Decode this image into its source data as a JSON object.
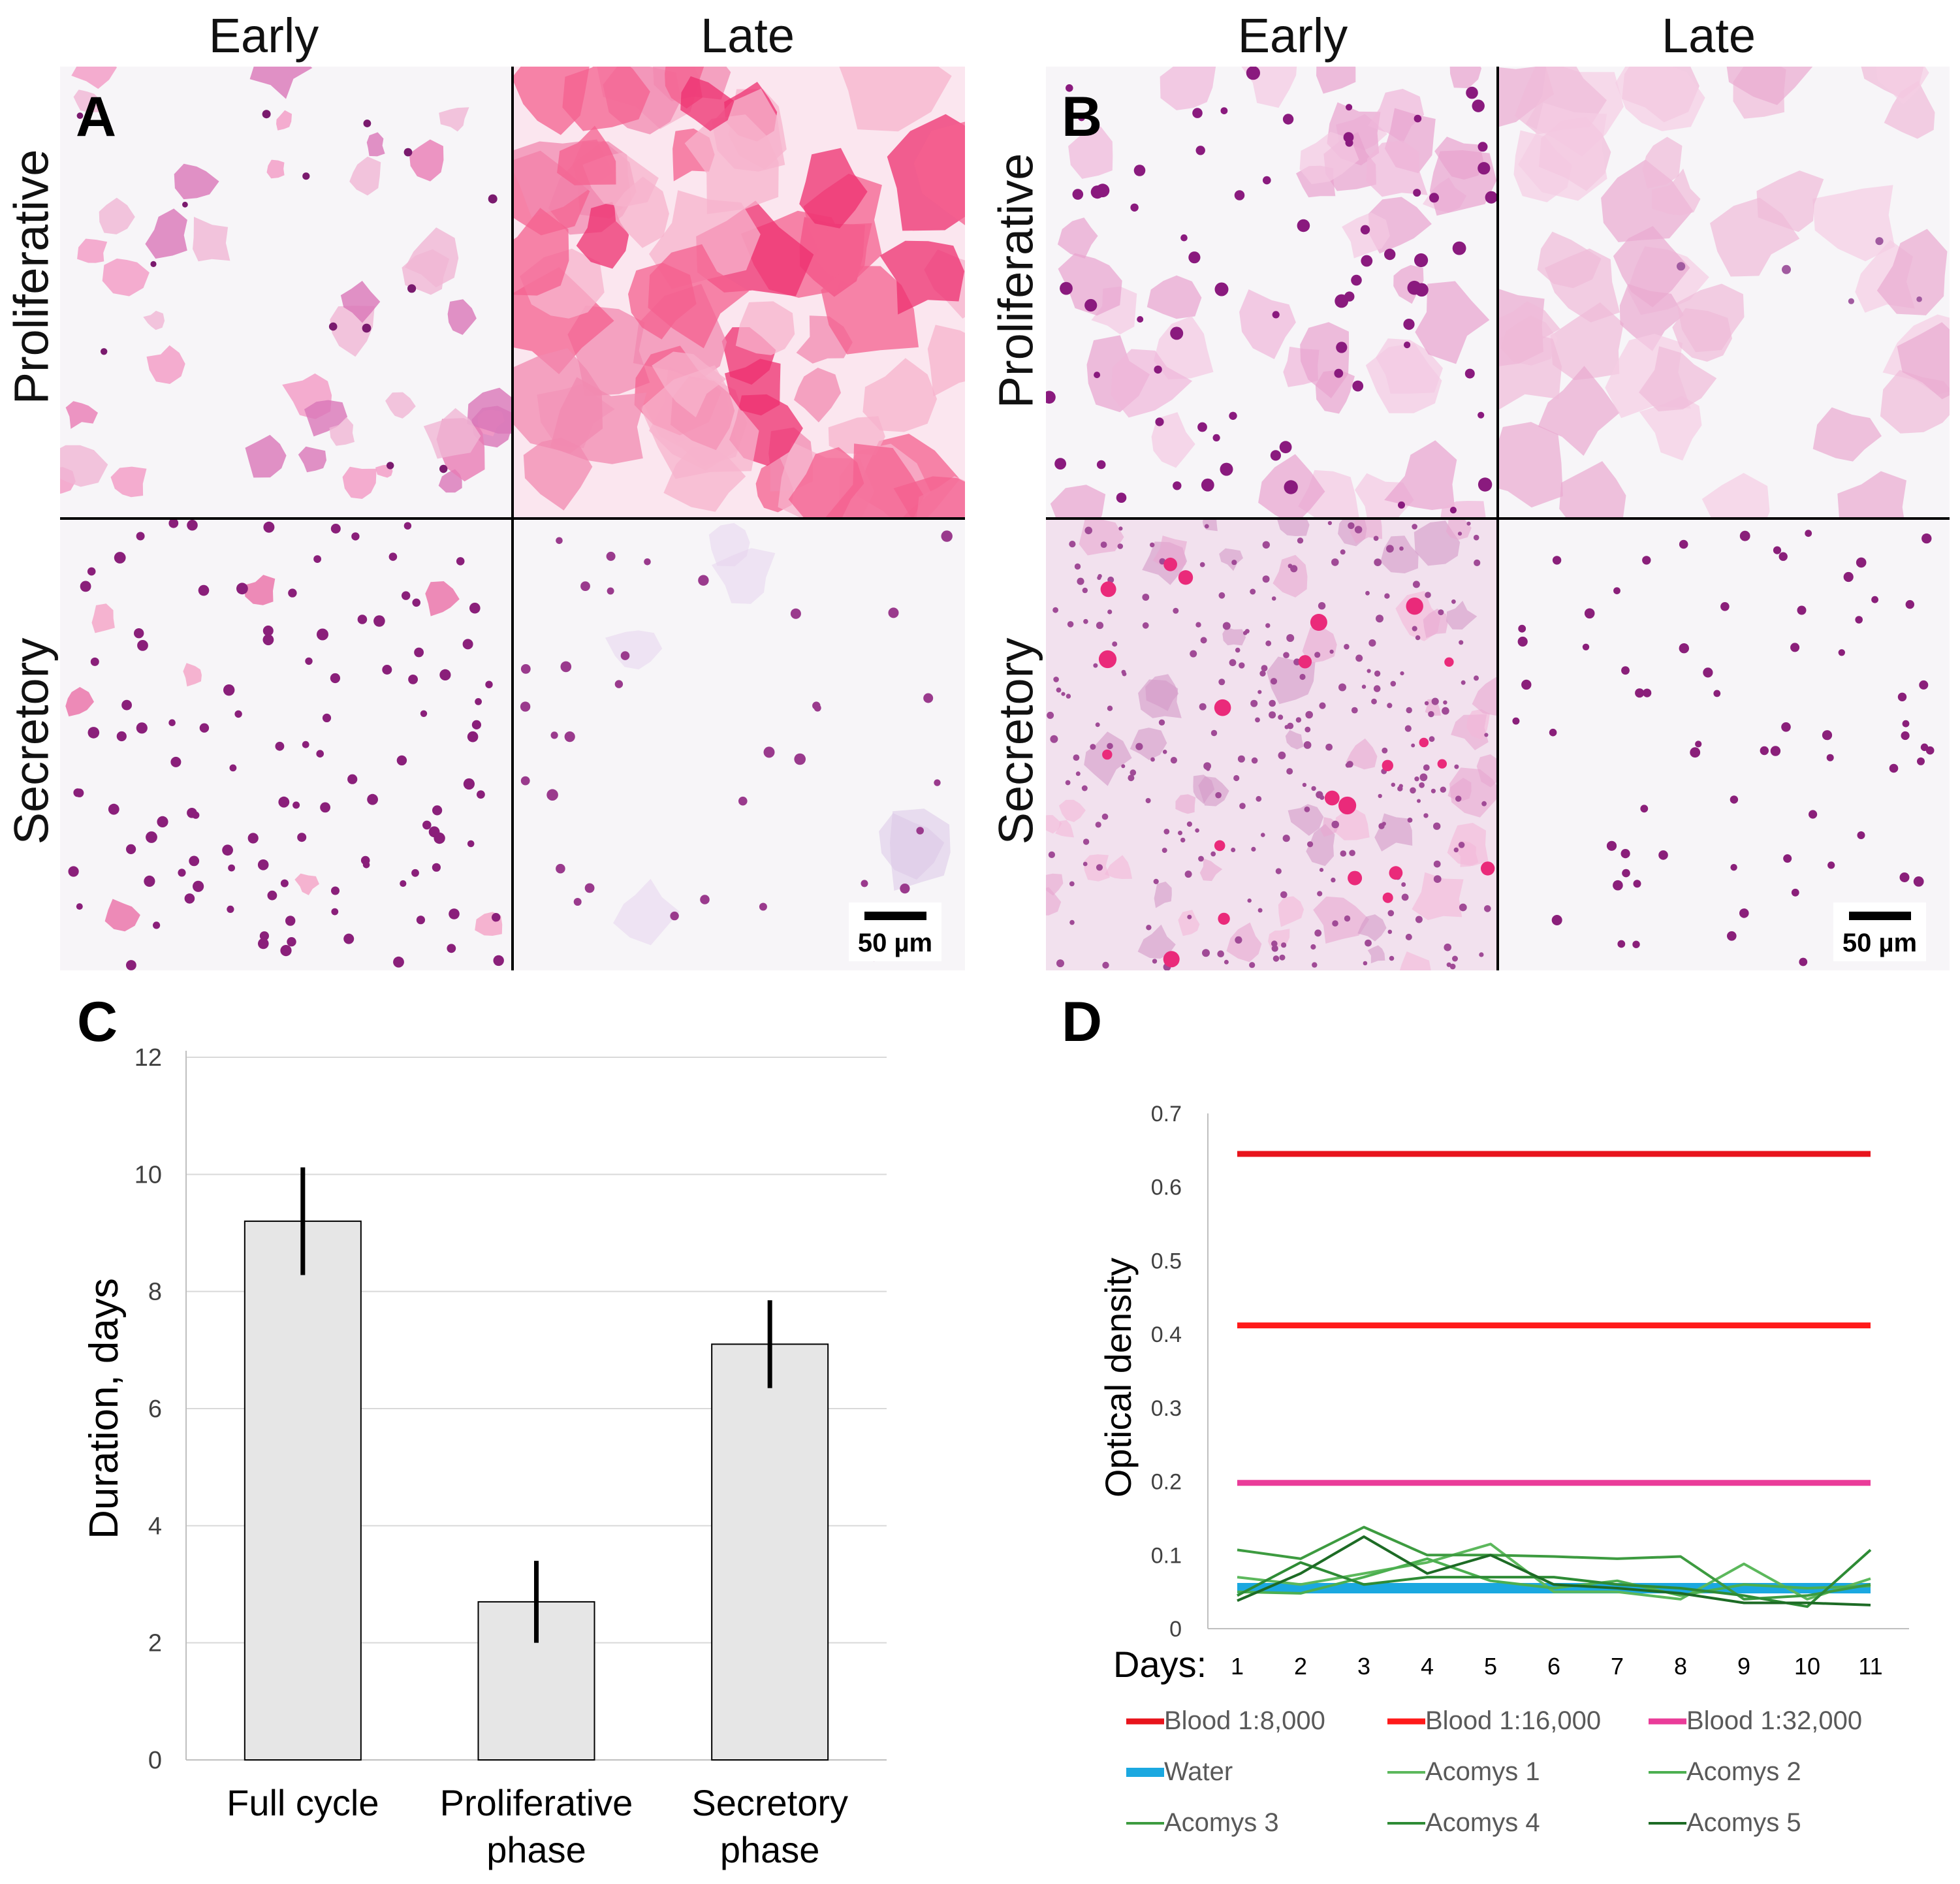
{
  "figure": {
    "panel_a": {
      "letter": "A",
      "col_labels": [
        "Early",
        "Late"
      ],
      "row_labels": [
        "Proliferative",
        "Secretory"
      ],
      "scale_bar": "50 µm"
    },
    "panel_b": {
      "letter": "B",
      "col_labels": [
        "Early",
        "Late"
      ],
      "row_labels": [
        "Proliferative",
        "Secretory"
      ],
      "scale_bar": "50 µm"
    },
    "panel_c": {
      "letter": "C"
    },
    "panel_d": {
      "letter": "D"
    }
  },
  "colors": {
    "bar_fill": "#e6e6e6",
    "blood_dark_red": "#e8141c",
    "blood_red": "#ff1a1a",
    "blood_pink": "#ea3c99",
    "water": "#1ba8e0",
    "acomys_1": "#5cb85c",
    "acomys_2": "#4caf50",
    "acomys_3": "#3d9b40",
    "acomys_4": "#2e8b35",
    "acomys_5": "#1d6b25"
  },
  "chart_data": [
    {
      "id": "C",
      "type": "bar",
      "title": "",
      "xlabel": "",
      "ylabel": "Duration, days",
      "ylim": [
        0,
        12
      ],
      "yticks": [
        "0",
        "2",
        "4",
        "6",
        "8",
        "10",
        "12"
      ],
      "grid": true,
      "categories": [
        {
          "line1": "Full cycle",
          "line2": ""
        },
        {
          "line1": "Proliferative",
          "line2": "phase"
        },
        {
          "line1": "Secretory",
          "line2": "phase"
        }
      ],
      "values": [
        9.2,
        2.7,
        7.1
      ],
      "errors": [
        0.92,
        0.7,
        0.75
      ]
    },
    {
      "id": "D",
      "type": "line",
      "title": "",
      "xlabel": "Days:",
      "ylabel": "Optical density",
      "ylim": [
        0,
        0.7
      ],
      "yticks": [
        "0",
        "0.1",
        "0.2",
        "0.3",
        "0.4",
        "0.5",
        "0.6",
        "0.7"
      ],
      "x": [
        1,
        2,
        3,
        4,
        5,
        6,
        7,
        8,
        9,
        10,
        11
      ],
      "xticks": [
        "1",
        "2",
        "3",
        "4",
        "5",
        "6",
        "7",
        "8",
        "9",
        "10",
        "11"
      ],
      "legend_position": "bottom",
      "series": [
        {
          "name": "Blood 1:8,000",
          "color": "#e8141c",
          "width": "thick",
          "values": [
            0.645,
            0.645,
            0.645,
            0.645,
            0.645,
            0.645,
            0.645,
            0.645,
            0.645,
            0.645,
            0.645
          ]
        },
        {
          "name": "Blood 1:16,000",
          "color": "#ff1a1a",
          "width": "thick",
          "values": [
            0.412,
            0.412,
            0.412,
            0.412,
            0.412,
            0.412,
            0.412,
            0.412,
            0.412,
            0.412,
            0.412
          ]
        },
        {
          "name": "Blood 1:32,000",
          "color": "#ea3c99",
          "width": "thick",
          "values": [
            0.198,
            0.198,
            0.198,
            0.198,
            0.198,
            0.198,
            0.198,
            0.198,
            0.198,
            0.198,
            0.198
          ]
        },
        {
          "name": "Water",
          "color": "#1ba8e0",
          "width": "thicker",
          "values": [
            0.055,
            0.055,
            0.055,
            0.055,
            0.055,
            0.055,
            0.055,
            0.055,
            0.055,
            0.055,
            0.055
          ]
        },
        {
          "name": "Acomys 1",
          "color": "#5cb85c",
          "width": "thin",
          "values": [
            0.07,
            0.06,
            0.075,
            0.09,
            0.115,
            0.05,
            0.05,
            0.04,
            0.088,
            0.04,
            0.068
          ]
        },
        {
          "name": "Acomys 2",
          "color": "#4caf50",
          "width": "thin",
          "values": [
            0.05,
            0.048,
            0.07,
            0.095,
            0.065,
            0.055,
            0.065,
            0.045,
            0.06,
            0.055,
            0.058
          ]
        },
        {
          "name": "Acomys 3",
          "color": "#3d9b40",
          "width": "thin",
          "values": [
            0.107,
            0.095,
            0.138,
            0.1,
            0.1,
            0.098,
            0.095,
            0.098,
            0.04,
            0.045,
            0.06
          ]
        },
        {
          "name": "Acomys 4",
          "color": "#2e8b35",
          "width": "thin",
          "values": [
            0.045,
            0.09,
            0.06,
            0.07,
            0.07,
            0.07,
            0.06,
            0.055,
            0.045,
            0.03,
            0.107
          ]
        },
        {
          "name": "Acomys 5",
          "color": "#1d6b25",
          "width": "thin",
          "values": [
            0.038,
            0.075,
            0.125,
            0.075,
            0.1,
            0.06,
            0.055,
            0.048,
            0.035,
            0.035,
            0.032
          ]
        }
      ]
    }
  ]
}
